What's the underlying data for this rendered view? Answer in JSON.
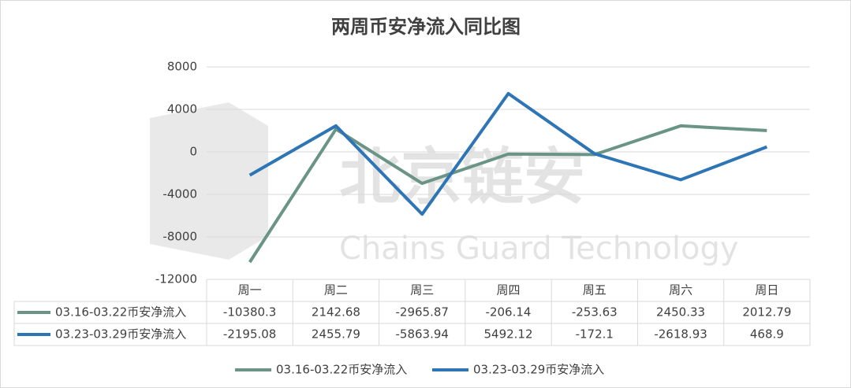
{
  "chart_data": {
    "type": "line",
    "title": "两周币安净流入同比图",
    "watermark": {
      "logo": "北京链安",
      "subtitle": "Chains Guard Technology"
    },
    "categories": [
      "周一",
      "周二",
      "周三",
      "周四",
      "周五",
      "周六",
      "周日"
    ],
    "series": [
      {
        "name": "03.16-03.22币安净流入",
        "color": "#6a9486",
        "values": [
          -10380.3,
          2142.68,
          -2965.87,
          -206.14,
          -253.63,
          2450.33,
          2012.79
        ]
      },
      {
        "name": "03.23-03.29币安净流入",
        "color": "#2e75b6",
        "values": [
          -2195.08,
          2455.79,
          -5863.94,
          5492.12,
          -172.1,
          -2618.93,
          468.9
        ]
      }
    ],
    "ylim": [
      -12000,
      8000
    ],
    "yticks": [
      8000,
      4000,
      0,
      -4000,
      -8000,
      -12000
    ],
    "grid": true,
    "legend": "bottom",
    "data_table": true
  }
}
